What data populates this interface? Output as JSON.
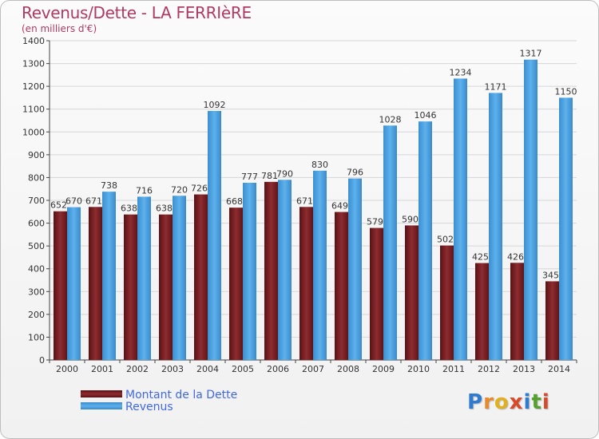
{
  "title": "Revenus/Dette - LA FERRIèRE",
  "subtitle": "(en milliers d'€)",
  "colors": {
    "series_debt": "#7a1f23",
    "series_revenue": "#4da4e2",
    "title": "#b03a62",
    "legend_text": "#4169e1"
  },
  "logo": {
    "text": "Proxiti",
    "letters": [
      "P",
      "r",
      "o",
      "x",
      "i",
      "t",
      "i"
    ],
    "colors": [
      "#2e7bd0",
      "#e8892b",
      "#e0b020",
      "#d84a2a",
      "#2e7bd0",
      "#55a02e",
      "#d84a2a"
    ]
  },
  "legend": [
    {
      "label": "Montant de la Dette",
      "color": "#7a1f23"
    },
    {
      "label": "Revenus",
      "color": "#4da4e2"
    }
  ],
  "chart_data": {
    "type": "bar",
    "title": "Revenus/Dette - LA FERRIèRE",
    "subtitle": "(en milliers d'€)",
    "categories": [
      "2000",
      "2001",
      "2002",
      "2003",
      "2004",
      "2005",
      "2006",
      "2007",
      "2008",
      "2009",
      "2010",
      "2011",
      "2012",
      "2013",
      "2014"
    ],
    "series": [
      {
        "name": "Montant de la Dette",
        "values": [
          652,
          671,
          638,
          638,
          726,
          668,
          781,
          671,
          649,
          579,
          590,
          502,
          425,
          426,
          345
        ]
      },
      {
        "name": "Revenus",
        "values": [
          670,
          738,
          716,
          720,
          1092,
          777,
          790,
          830,
          796,
          1028,
          1046,
          1234,
          1171,
          1317,
          1150
        ]
      }
    ],
    "yticks": [
      0,
      100,
      200,
      300,
      400,
      500,
      600,
      700,
      800,
      900,
      1000,
      1100,
      1200,
      1300,
      1400
    ],
    "ylim": [
      0,
      1400
    ],
    "grid": true,
    "legend_position": "bottom-left"
  }
}
